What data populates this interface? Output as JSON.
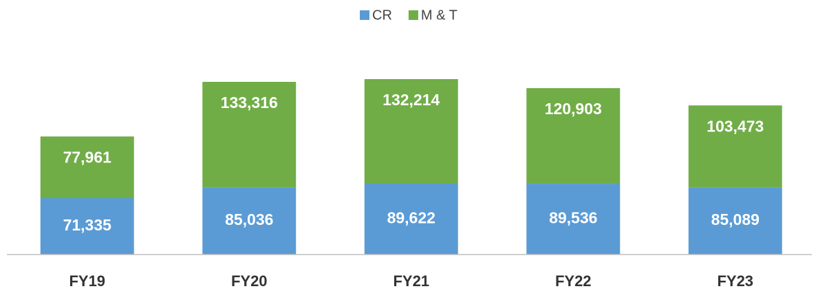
{
  "chart_data": {
    "type": "stacked_bar",
    "categories": [
      "FY19",
      "FY20",
      "FY21",
      "FY22",
      "FY23"
    ],
    "series": [
      {
        "name": "CR",
        "color": "#5b9bd5",
        "values": [
          71335,
          85036,
          89622,
          89536,
          85089
        ],
        "value_labels": [
          "71,335",
          "85,036",
          "89,622",
          "89,536",
          "85,089"
        ]
      },
      {
        "name": "M & T",
        "color": "#70ad47",
        "values": [
          77961,
          133316,
          132214,
          120903,
          103473
        ],
        "value_labels": [
          "77,961",
          "133,316",
          "132,214",
          "120,903",
          "103,473"
        ]
      }
    ],
    "legend": "top"
  }
}
